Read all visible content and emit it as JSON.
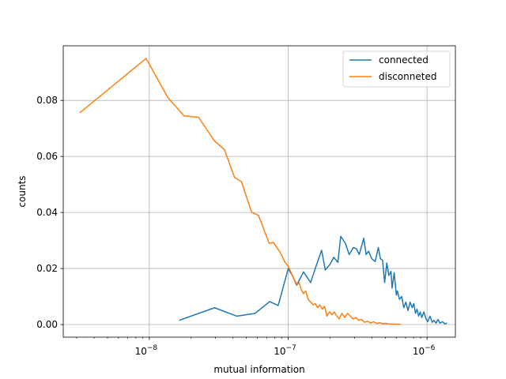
{
  "chart_data": {
    "type": "line",
    "title": "",
    "xlabel": "mutual information",
    "ylabel": "counts",
    "xscale": "log",
    "xlim": [
      2.4e-09,
      1.6e-06
    ],
    "ylim": [
      -0.0045,
      0.0995
    ],
    "grid": true,
    "legend_position": "top-right",
    "x_ticks": [
      {
        "value": 1e-08,
        "label_base": "10",
        "label_exp": "−8"
      },
      {
        "value": 1e-07,
        "label_base": "10",
        "label_exp": "−7"
      },
      {
        "value": 1e-06,
        "label_base": "10",
        "label_exp": "−6"
      }
    ],
    "y_ticks": [
      {
        "value": 0.0,
        "label": "0.00"
      },
      {
        "value": 0.02,
        "label": "0.02"
      },
      {
        "value": 0.04,
        "label": "0.04"
      },
      {
        "value": 0.06,
        "label": "0.06"
      },
      {
        "value": 0.08,
        "label": "0.08"
      }
    ],
    "series": [
      {
        "name": "connected",
        "color": "#1f77b4",
        "points": [
          [
            1.64e-08,
            0.0015
          ],
          [
            2.95e-08,
            0.006
          ],
          [
            4.27e-08,
            0.003
          ],
          [
            5.78e-08,
            0.004
          ],
          [
            7.36e-08,
            0.0082
          ],
          [
            8.47e-08,
            0.0068
          ],
          [
            1e-07,
            0.0199
          ],
          [
            1.08e-07,
            0.0172
          ],
          [
            1.15e-07,
            0.014
          ],
          [
            1.29e-07,
            0.0188
          ],
          [
            1.45e-07,
            0.015
          ],
          [
            1.63e-07,
            0.0225
          ],
          [
            1.74e-07,
            0.0265
          ],
          [
            1.85e-07,
            0.0195
          ],
          [
            2e-07,
            0.0215
          ],
          [
            2.13e-07,
            0.024
          ],
          [
            2.28e-07,
            0.0222
          ],
          [
            2.39e-07,
            0.0315
          ],
          [
            2.58e-07,
            0.029
          ],
          [
            2.75e-07,
            0.025
          ],
          [
            2.95e-07,
            0.0275
          ],
          [
            3.1e-07,
            0.027
          ],
          [
            3.25e-07,
            0.025
          ],
          [
            3.5e-07,
            0.0308
          ],
          [
            3.64e-07,
            0.025
          ],
          [
            3.79e-07,
            0.0262
          ],
          [
            4e-07,
            0.0235
          ],
          [
            4.23e-07,
            0.0225
          ],
          [
            4.46e-07,
            0.0275
          ],
          [
            4.61e-07,
            0.0235
          ],
          [
            4.78e-07,
            0.023
          ],
          [
            4.95e-07,
            0.015
          ],
          [
            5.13e-07,
            0.022
          ],
          [
            5.31e-07,
            0.0175
          ],
          [
            5.5e-07,
            0.019
          ],
          [
            5.6e-07,
            0.013
          ],
          [
            5.8e-07,
            0.0185
          ],
          [
            6.01e-07,
            0.0105
          ],
          [
            6.11e-07,
            0.012
          ],
          [
            6.33e-07,
            0.009
          ],
          [
            6.56e-07,
            0.01
          ],
          [
            6.8e-07,
            0.006
          ],
          [
            7.04e-07,
            0.008
          ],
          [
            7.29e-07,
            0.005
          ],
          [
            7.55e-07,
            0.008
          ],
          [
            7.82e-07,
            0.006
          ],
          [
            8.03e-07,
            0.0075
          ],
          [
            8.25e-07,
            0.004
          ],
          [
            8.47e-07,
            0.0055
          ],
          [
            8.7e-07,
            0.003
          ],
          [
            8.93e-07,
            0.0045
          ],
          [
            9.17e-07,
            0.0025
          ],
          [
            9.49e-07,
            0.0045
          ],
          [
            9.83e-07,
            0.002
          ],
          [
            1.01e-06,
            0.001
          ],
          [
            1.05e-06,
            0.003
          ],
          [
            1.09e-06,
            0.0008
          ],
          [
            1.12e-06,
            0.0015
          ],
          [
            1.16e-06,
            0.0005
          ],
          [
            1.2e-06,
            0.0018
          ],
          [
            1.24e-06,
            0.0005
          ],
          [
            1.29e-06,
            0.001
          ],
          [
            1.34e-06,
            0.0003
          ],
          [
            1.39e-06,
            0.0005
          ]
        ]
      },
      {
        "name": "disconneted",
        "color": "#ff7f0e",
        "points": [
          [
            3.16e-09,
            0.0756
          ],
          [
            9.49e-09,
            0.095
          ],
          [
            1.36e-08,
            0.081
          ],
          [
            1.78e-08,
            0.0745
          ],
          [
            2.26e-08,
            0.074
          ],
          [
            2.95e-08,
            0.0655
          ],
          [
            3.47e-08,
            0.0625
          ],
          [
            4.11e-08,
            0.0525
          ],
          [
            4.61e-08,
            0.051
          ],
          [
            5.46e-08,
            0.04
          ],
          [
            6.11e-08,
            0.039
          ],
          [
            6.56e-08,
            0.035
          ],
          [
            7.29e-08,
            0.029
          ],
          [
            7.82e-08,
            0.0293
          ],
          [
            8.7e-08,
            0.026
          ],
          [
            9.49e-08,
            0.0222
          ],
          [
            1.01e-07,
            0.0205
          ],
          [
            1.08e-07,
            0.017
          ],
          [
            1.16e-07,
            0.0142
          ],
          [
            1.2e-07,
            0.015
          ],
          [
            1.24e-07,
            0.0125
          ],
          [
            1.29e-07,
            0.011
          ],
          [
            1.34e-07,
            0.012
          ],
          [
            1.39e-07,
            0.009
          ],
          [
            1.45e-07,
            0.008
          ],
          [
            1.52e-07,
            0.007
          ],
          [
            1.57e-07,
            0.0075
          ],
          [
            1.63e-07,
            0.006
          ],
          [
            1.69e-07,
            0.007
          ],
          [
            1.76e-07,
            0.0055
          ],
          [
            1.83e-07,
            0.0065
          ],
          [
            1.9e-07,
            0.003
          ],
          [
            1.98e-07,
            0.0045
          ],
          [
            2.07e-07,
            0.0035
          ],
          [
            2.15e-07,
            0.0045
          ],
          [
            2.24e-07,
            0.003
          ],
          [
            2.33e-07,
            0.002
          ],
          [
            2.44e-07,
            0.004
          ],
          [
            2.55e-07,
            0.0025
          ],
          [
            2.67e-07,
            0.004
          ],
          [
            2.8e-07,
            0.003
          ],
          [
            2.93e-07,
            0.002
          ],
          [
            3.07e-07,
            0.0025
          ],
          [
            3.22e-07,
            0.0015
          ],
          [
            3.38e-07,
            0.0018
          ],
          [
            3.55e-07,
            0.0008
          ],
          [
            3.73e-07,
            0.0012
          ],
          [
            3.92e-07,
            0.0005
          ],
          [
            4.12e-07,
            0.001
          ],
          [
            4.34e-07,
            0.0004
          ],
          [
            4.57e-07,
            0.0006
          ],
          [
            4.81e-07,
            0.0003
          ],
          [
            5.06e-07,
            0.0004
          ],
          [
            5.33e-07,
            0.0002
          ],
          [
            5.62e-07,
            0.0002
          ],
          [
            5.93e-07,
            0.0001
          ],
          [
            6.26e-07,
            0.0001
          ],
          [
            6.5e-07,
            0.0
          ]
        ]
      }
    ]
  }
}
